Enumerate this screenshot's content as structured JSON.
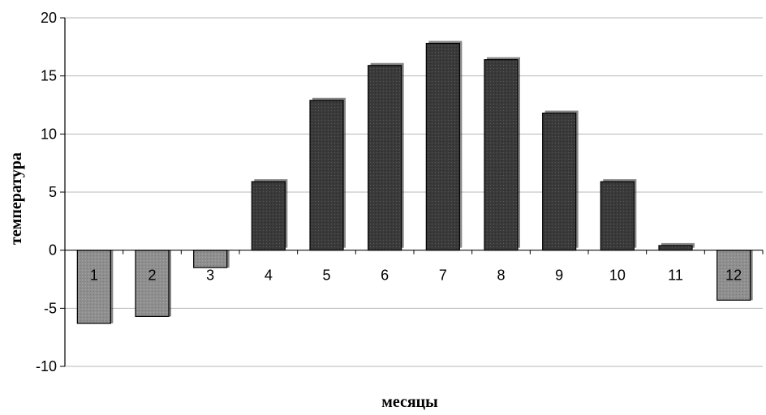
{
  "chart_data": {
    "type": "bar",
    "title": "",
    "xlabel": "месяцы",
    "ylabel": "температура",
    "categories": [
      "1",
      "2",
      "3",
      "4",
      "5",
      "6",
      "7",
      "8",
      "9",
      "10",
      "11",
      "12"
    ],
    "values": [
      -6.3,
      -5.7,
      -1.5,
      5.9,
      12.9,
      15.9,
      17.8,
      16.4,
      11.8,
      5.9,
      0.4,
      -4.3
    ],
    "ylim": [
      -10,
      20
    ],
    "yticks": [
      20,
      15,
      10,
      5,
      0,
      -5,
      -10
    ],
    "grid": true,
    "legend": "none",
    "colors": {
      "positive": "#3a3a3a",
      "negative": "#8f8f8f",
      "grid": "#b8b8b8",
      "border": "#000000"
    }
  }
}
